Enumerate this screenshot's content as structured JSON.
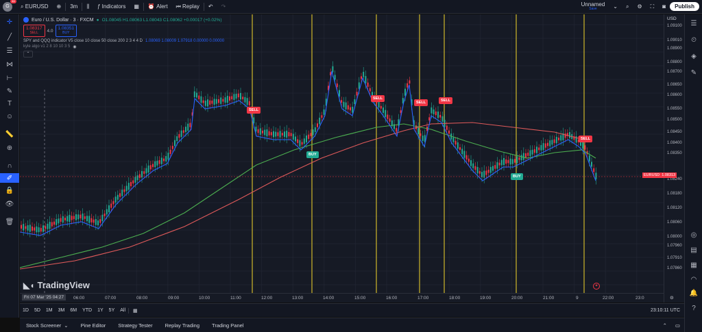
{
  "topbar": {
    "avatar_badge": "11",
    "symbol": "EURUSD",
    "interval": "3m",
    "indicators": "Indicators",
    "alert": "Alert",
    "replay": "Replay",
    "layout_name": "Unnamed",
    "layout_status": "Save",
    "publish": "Publish"
  },
  "legend": {
    "title": "Euro / U.S. Dollar · 3 · FXCM",
    "ohlc": "O1.08045 H1.08063 L1.08043 C1.08062 +0.00017 (+0.02%)",
    "sell_price": "1.08317",
    "sell_label": "SELL",
    "spread": "4.0",
    "buy_price": "1.08351",
    "buy_label": "BUY",
    "indicator1_name": "SPY and QQQ indicator V5 close 10 close 50 close 200 2 3 4 4 D",
    "indicator1_values": "1.08069 1.08009 1.07918 0.00000 0.00000",
    "indicator2_name": "kyle algo   v1 2 8 10 10 3 5"
  },
  "price_axis": {
    "currency": "USD",
    "labels": [
      "1.09100",
      "1.09010",
      "1.08900",
      "1.08800",
      "1.08700",
      "1.08650",
      "1.08600",
      "1.08550",
      "1.08500",
      "1.08450",
      "1.08400",
      "1.08350",
      "1.08240",
      "1.08180",
      "1.08120",
      "1.08060",
      "1.08000",
      "1.07960",
      "1.07910",
      "1.07860"
    ],
    "current_symbol": "EURUSD",
    "current_price": "1.08313"
  },
  "time_axis": {
    "cursor_label": "Fri 07 Mar '25  04:27",
    "labels": [
      "06:00",
      "07:00",
      "08:00",
      "09:00",
      "10:00",
      "11:00",
      "12:00",
      "13:00",
      "14:00",
      "15:00",
      "16:00",
      "17:00",
      "18:00",
      "19:00",
      "20:00",
      "21:00",
      "9",
      "22:00",
      "23:0"
    ]
  },
  "signals": [
    {
      "type": "SELL",
      "label": "SELL"
    },
    {
      "type": "BUY",
      "label": "BUY"
    },
    {
      "type": "SELL",
      "label": "SELL"
    },
    {
      "type": "SELL",
      "label": "SELL"
    },
    {
      "type": "SELL",
      "label": "SELL"
    },
    {
      "type": "BUY",
      "label": "BUY"
    },
    {
      "type": "SELL",
      "label": "SELL"
    }
  ],
  "periods": {
    "items": [
      "1D",
      "5D",
      "1M",
      "3M",
      "6M",
      "YTD",
      "1Y",
      "5Y",
      "All"
    ],
    "clock": "23:10:11 UTC"
  },
  "bottombar": {
    "items": [
      "Stock Screener",
      "Pine Editor",
      "Strategy Tester",
      "Replay Trading",
      "Trading Panel"
    ]
  },
  "watermark": "TradingView",
  "colors": {
    "sell": "#f23645",
    "buy": "#22ab94",
    "vline": "#b5a22a"
  }
}
